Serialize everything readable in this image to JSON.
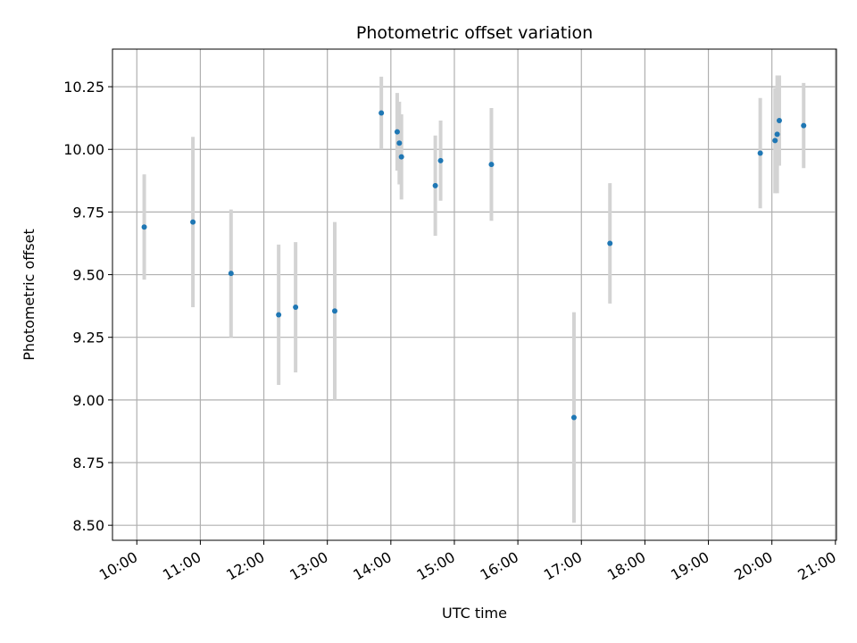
{
  "chart_data": {
    "type": "scatter",
    "title": "Photometric offset variation",
    "xlabel": "UTC time",
    "ylabel": "Photometric offset",
    "x_ticks": [
      "10:00",
      "11:00",
      "12:00",
      "13:00",
      "14:00",
      "15:00",
      "16:00",
      "17:00",
      "18:00",
      "19:00",
      "20:00",
      "21:00"
    ],
    "y_ticks": [
      "8.50",
      "8.75",
      "9.00",
      "9.25",
      "9.50",
      "9.75",
      "10.00",
      "10.25"
    ],
    "xlim": [
      "09:37",
      "21:01"
    ],
    "ylim": [
      8.44,
      10.4
    ],
    "grid": true,
    "marker_color": "#1f77b4",
    "errorbar_color": "#d3d3d3",
    "points": [
      {
        "time": "10:07",
        "y": 9.69,
        "err": 0.21
      },
      {
        "time": "10:53",
        "y": 9.71,
        "err": 0.34
      },
      {
        "time": "11:29",
        "y": 9.505,
        "err": 0.255
      },
      {
        "time": "12:14",
        "y": 9.34,
        "err": 0.28
      },
      {
        "time": "12:30",
        "y": 9.37,
        "err": 0.26
      },
      {
        "time": "13:07",
        "y": 9.355,
        "err": 0.355
      },
      {
        "time": "13:51",
        "y": 10.145,
        "err": 0.145
      },
      {
        "time": "14:06",
        "y": 10.07,
        "err": 0.155
      },
      {
        "time": "14:08",
        "y": 10.025,
        "err": 0.165
      },
      {
        "time": "14:10",
        "y": 9.97,
        "err": 0.17
      },
      {
        "time": "14:42",
        "y": 9.855,
        "err": 0.2
      },
      {
        "time": "14:47",
        "y": 9.955,
        "err": 0.16
      },
      {
        "time": "15:35",
        "y": 9.94,
        "err": 0.225
      },
      {
        "time": "16:53",
        "y": 8.93,
        "err": 0.42
      },
      {
        "time": "17:27",
        "y": 9.625,
        "err": 0.24
      },
      {
        "time": "19:49",
        "y": 9.985,
        "err": 0.22
      },
      {
        "time": "20:03",
        "y": 10.035,
        "err": 0.21
      },
      {
        "time": "20:05",
        "y": 10.06,
        "err": 0.235
      },
      {
        "time": "20:07",
        "y": 10.115,
        "err": 0.18
      },
      {
        "time": "20:30",
        "y": 10.095,
        "err": 0.17
      }
    ]
  }
}
